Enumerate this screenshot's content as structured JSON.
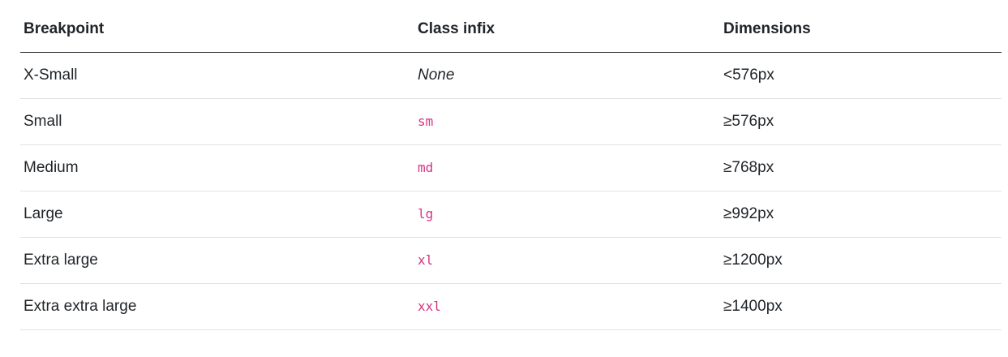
{
  "headers": [
    "Breakpoint",
    "Class infix",
    "Dimensions"
  ],
  "rows": [
    {
      "breakpoint": "X-Small",
      "infix": "None",
      "infix_style": "italic",
      "dimensions": "<576px"
    },
    {
      "breakpoint": "Small",
      "infix": "sm",
      "infix_style": "code",
      "dimensions": "≥576px"
    },
    {
      "breakpoint": "Medium",
      "infix": "md",
      "infix_style": "code",
      "dimensions": "≥768px"
    },
    {
      "breakpoint": "Large",
      "infix": "lg",
      "infix_style": "code",
      "dimensions": "≥992px"
    },
    {
      "breakpoint": "Extra large",
      "infix": "xl",
      "infix_style": "code",
      "dimensions": "≥1200px"
    },
    {
      "breakpoint": "Extra extra large",
      "infix": "xxl",
      "infix_style": "code",
      "dimensions": "≥1400px"
    }
  ],
  "colors": {
    "text": "#212529",
    "code": "#d63384",
    "border": "#dee2e6"
  }
}
